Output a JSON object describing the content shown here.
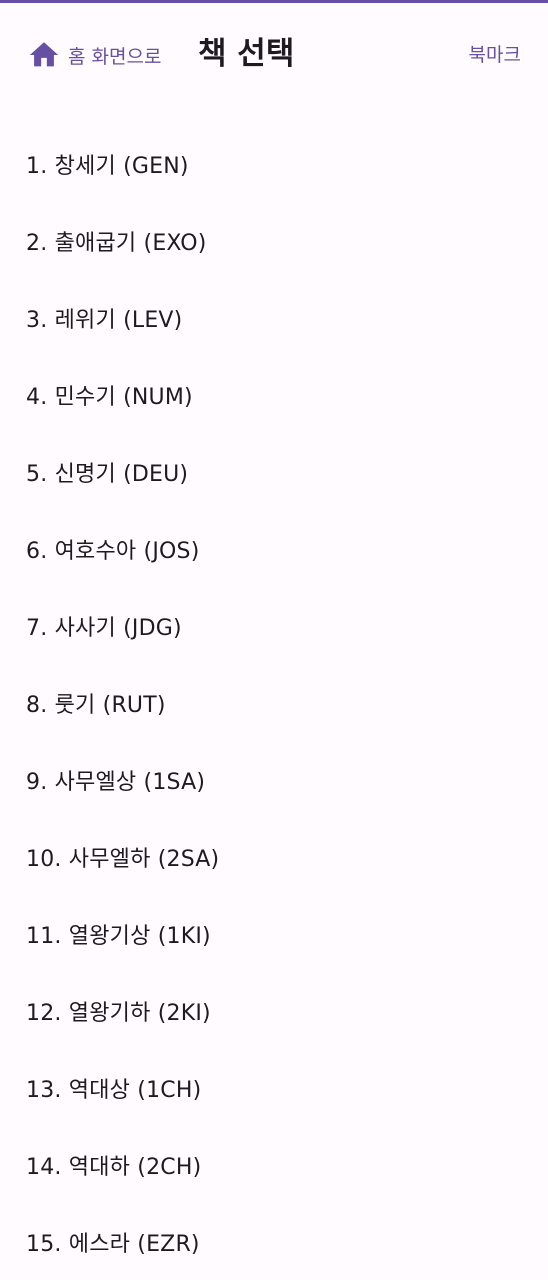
{
  "header": {
    "home_icon": "home-icon",
    "home_label": "홈 화면으로",
    "title": "책 선택",
    "bookmark_label": "북마크"
  },
  "colors": {
    "accent": "#6750a4",
    "background": "#fffbfe",
    "text": "#1d1b20"
  },
  "books": [
    "1. 창세기 (GEN)",
    "2. 출애굽기 (EXO)",
    "3. 레위기 (LEV)",
    "4. 민수기 (NUM)",
    "5. 신명기 (DEU)",
    "6. 여호수아 (JOS)",
    "7. 사사기 (JDG)",
    "8. 룻기 (RUT)",
    "9. 사무엘상 (1SA)",
    "10. 사무엘하 (2SA)",
    "11. 열왕기상 (1KI)",
    "12. 열왕기하 (2KI)",
    "13. 역대상 (1CH)",
    "14. 역대하 (2CH)",
    "15. 에스라 (EZR)"
  ]
}
